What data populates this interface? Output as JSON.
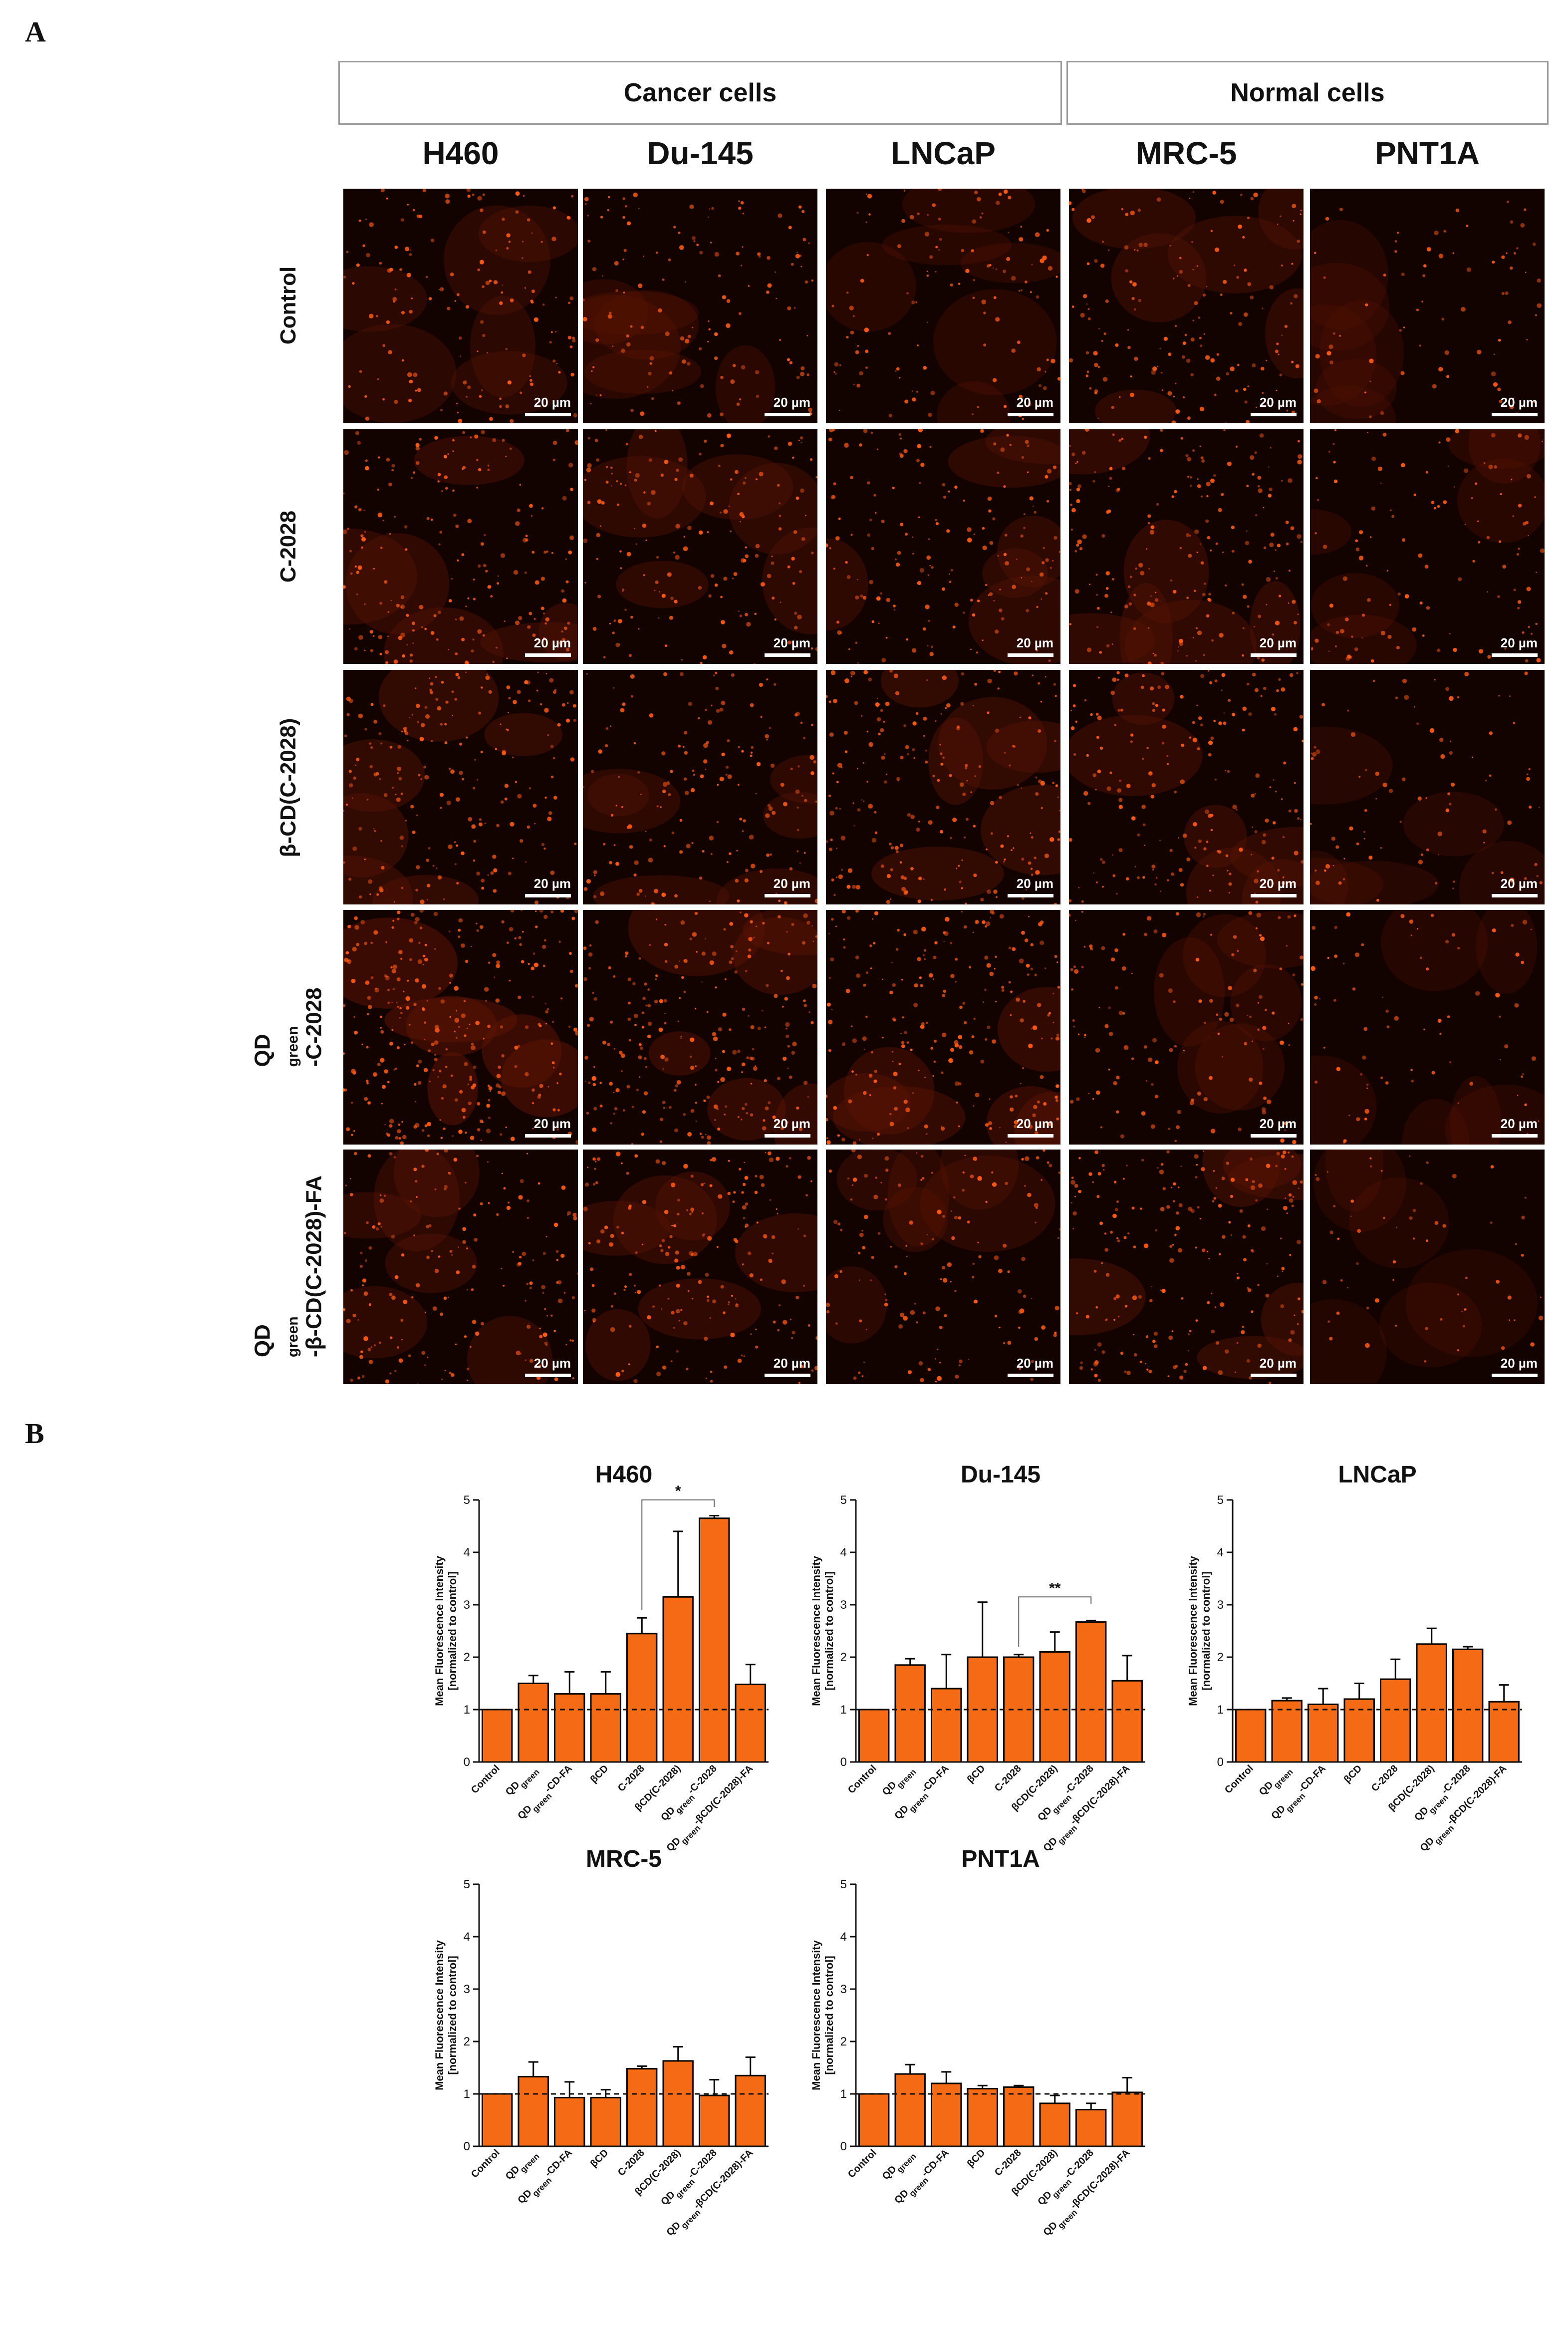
{
  "panel_labels": {
    "a": "A",
    "b": "B"
  },
  "groups": {
    "cancer": "Cancer cells",
    "normal": "Normal cells"
  },
  "cell_lines": [
    "H460",
    "Du-145",
    "LNCaP",
    "MRC-5",
    "PNT1A"
  ],
  "treatments": [
    {
      "main": "Control",
      "sub": "",
      "rest": ""
    },
    {
      "main": "C-2028",
      "sub": "",
      "rest": ""
    },
    {
      "main": "β-CD(C-2028)",
      "sub": "",
      "rest": ""
    },
    {
      "main": "QD",
      "sub": "green",
      "rest": "-C-2028"
    },
    {
      "main": "QD",
      "sub": "green",
      "rest": "-β-CD(C-2028)-FA"
    }
  ],
  "scale_bar_label": "20 µm",
  "colors": {
    "bar_fill": "#f56a14",
    "bar_stroke": "#000000",
    "micro_background": "#120200",
    "micro_signal": "#ff5a10"
  },
  "chart_data": [
    {
      "type": "bar",
      "title": "H460",
      "ylabel": "Mean Fluorescence Intensity [normalized to control]",
      "ylim": [
        0,
        5
      ],
      "yticks": [
        0,
        1,
        2,
        3,
        4,
        5
      ],
      "reference_line": 1,
      "categories": [
        "Control",
        "QDgreen",
        "QDgreen-CD-FA",
        "βCD",
        "C-2028",
        "βCD(C-2028)",
        "QDgreen-C-2028",
        "QDgreen-βCD(C-2028)-FA"
      ],
      "values": [
        1.0,
        1.5,
        1.3,
        1.3,
        2.45,
        3.15,
        4.65,
        1.48
      ],
      "errors": [
        0.0,
        0.15,
        0.42,
        0.42,
        0.3,
        1.25,
        0.05,
        0.38
      ],
      "significance": [
        {
          "from": 4,
          "to": 6,
          "label": "*"
        }
      ]
    },
    {
      "type": "bar",
      "title": "Du-145",
      "ylabel": "Mean Fluorescence Intensity [normalized to control]",
      "ylim": [
        0,
        5
      ],
      "yticks": [
        0,
        1,
        2,
        3,
        4,
        5
      ],
      "reference_line": 1,
      "categories": [
        "Control",
        "QDgreen",
        "QDgreen-CD-FA",
        "βCD",
        "C-2028",
        "βCD(C-2028)",
        "QDgreen-C-2028",
        "QDgreen-βCD(C-2028)-FA"
      ],
      "values": [
        1.0,
        1.85,
        1.4,
        2.0,
        2.0,
        2.1,
        2.67,
        1.55
      ],
      "errors": [
        0.0,
        0.12,
        0.65,
        1.05,
        0.05,
        0.38,
        0.03,
        0.48
      ],
      "significance": [
        {
          "from": 4,
          "to": 6,
          "label": "**"
        }
      ]
    },
    {
      "type": "bar",
      "title": "LNCaP",
      "ylabel": "Mean Fluorescence Intensity [normalized to control]",
      "ylim": [
        0,
        5
      ],
      "yticks": [
        0,
        1,
        2,
        3,
        4,
        5
      ],
      "reference_line": 1,
      "categories": [
        "Control",
        "QDgreen",
        "QDgreen-CD-FA",
        "βCD",
        "C-2028",
        "βCD(C-2028)",
        "QDgreen-C-2028",
        "QDgreen-βCD(C-2028)-FA"
      ],
      "values": [
        1.0,
        1.17,
        1.1,
        1.2,
        1.58,
        2.25,
        2.15,
        1.15
      ],
      "errors": [
        0.0,
        0.05,
        0.3,
        0.3,
        0.38,
        0.3,
        0.05,
        0.32
      ],
      "significance": []
    },
    {
      "type": "bar",
      "title": "MRC-5",
      "ylabel": "Mean Fluorescence Intensity [normalized to control]",
      "ylim": [
        0,
        5
      ],
      "yticks": [
        0,
        1,
        2,
        3,
        4,
        5
      ],
      "reference_line": 1,
      "categories": [
        "Control",
        "QDgreen",
        "QDgreen-CD-FA",
        "βCD",
        "C-2028",
        "βCD(C-2028)",
        "QDgreen-C-2028",
        "QDgreen-βCD(C-2028)-FA"
      ],
      "values": [
        1.0,
        1.33,
        0.93,
        0.93,
        1.48,
        1.63,
        0.97,
        1.35
      ],
      "errors": [
        0.0,
        0.28,
        0.3,
        0.15,
        0.05,
        0.27,
        0.3,
        0.35
      ],
      "significance": []
    },
    {
      "type": "bar",
      "title": "PNT1A",
      "ylabel": "Mean Fluorescence Intensity [normalized to control]",
      "ylim": [
        0,
        5
      ],
      "yticks": [
        0,
        1,
        2,
        3,
        4,
        5
      ],
      "reference_line": 1,
      "categories": [
        "Control",
        "QDgreen",
        "QDgreen-CD-FA",
        "βCD",
        "C-2028",
        "βCD(C-2028)",
        "QDgreen-C-2028",
        "QDgreen-βCD(C-2028)-FA"
      ],
      "values": [
        1.0,
        1.38,
        1.2,
        1.1,
        1.13,
        0.82,
        0.7,
        1.03
      ],
      "errors": [
        0.0,
        0.18,
        0.22,
        0.06,
        0.03,
        0.15,
        0.12,
        0.28
      ],
      "significance": []
    }
  ]
}
